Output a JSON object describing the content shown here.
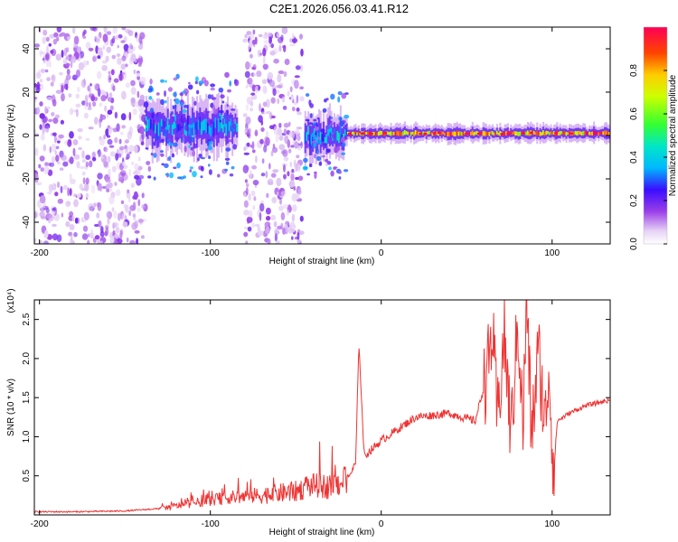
{
  "title": "C2E1.2026.056.03.41.R12",
  "chart_data": [
    {
      "type": "heatmap",
      "xlabel": "Height of straight line (km)",
      "ylabel": "Frequency (Hz)",
      "xlim": [
        -203,
        134
      ],
      "ylim": [
        -50,
        50
      ],
      "xticks": [
        -200,
        -100,
        0,
        100
      ],
      "yticks": [
        -40,
        -20,
        0,
        20,
        40
      ],
      "colorbar": {
        "label": "Normalized spectral amplitude",
        "range": [
          0,
          1
        ],
        "ticks": [
          0.0,
          0.2,
          0.4,
          0.6,
          0.8
        ]
      },
      "features": [
        {
          "x_range": [
            -203,
            -138
          ],
          "freq_range": [
            -50,
            50
          ],
          "amplitude": [
            0.05,
            0.2
          ],
          "pattern": "scattered noise"
        },
        {
          "x_range": [
            -138,
            -84
          ],
          "center_freq": 4,
          "bandwidth": 12,
          "amplitude": [
            0.2,
            0.45
          ],
          "pattern": "band"
        },
        {
          "x_range": [
            -80,
            -46
          ],
          "freq_range": [
            -50,
            50
          ],
          "amplitude": [
            0.05,
            0.2
          ],
          "pattern": "scattered noise"
        },
        {
          "x_range": [
            -45,
            -20
          ],
          "center_freq": 0,
          "bandwidth": 10,
          "amplitude": [
            0.2,
            0.5
          ],
          "pattern": "band"
        },
        {
          "x_range": [
            -20,
            134
          ],
          "center_freq": 1,
          "bandwidth": 4,
          "amplitude": [
            0.6,
            1.0
          ],
          "pattern": "narrow band"
        }
      ]
    },
    {
      "type": "line",
      "xlabel": "Height of straight line (km)",
      "ylabel": "SNR (10 * v/v)",
      "scale_label": "(x10⁴)",
      "xlim": [
        -203,
        134
      ],
      "ylim": [
        0,
        2.75
      ],
      "xticks": [
        -200,
        -100,
        0,
        100
      ],
      "yticks": [
        "0.5",
        "1.0",
        "1.5",
        "2.0",
        "2.5"
      ],
      "series": [
        {
          "color": "#ee3333",
          "x": [
            -203,
            -180,
            -150,
            -130,
            -110,
            -90,
            -70,
            -50,
            -40,
            -30,
            -20,
            -15,
            -13,
            -10,
            0,
            20,
            40,
            55,
            62,
            65,
            68,
            72,
            76,
            80,
            83,
            85,
            88,
            92,
            96,
            98,
            101,
            103,
            110,
            120,
            134
          ],
          "y": [
            0.04,
            0.04,
            0.05,
            0.08,
            0.15,
            0.22,
            0.25,
            0.3,
            0.38,
            0.36,
            0.45,
            0.65,
            2.2,
            0.75,
            0.95,
            1.25,
            1.3,
            1.2,
            1.8,
            2.35,
            1.2,
            2.3,
            1.0,
            2.5,
            1.1,
            2.75,
            1.0,
            2.1,
            1.1,
            1.9,
            0.55,
            1.2,
            1.3,
            1.4,
            1.47
          ]
        }
      ]
    }
  ]
}
